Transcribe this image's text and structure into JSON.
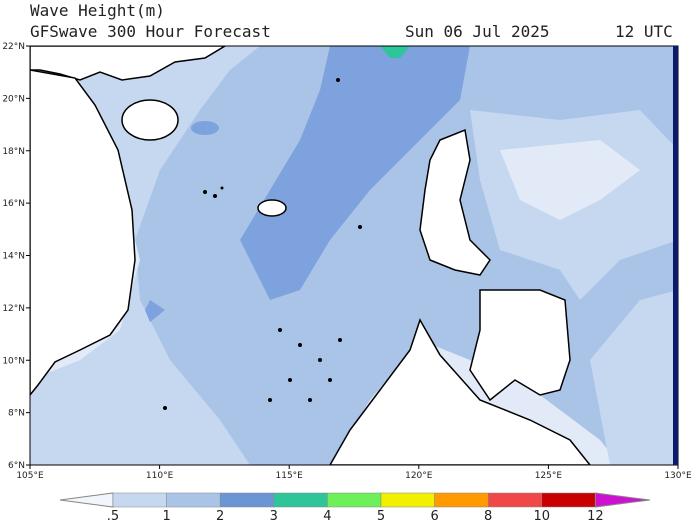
{
  "header": {
    "title": "Wave Height(m)",
    "subtitle": "GFSwave 300 Hour Forecast",
    "date": "Sun 06 Jul 2025",
    "time": "12 UTC"
  },
  "map": {
    "lat_labels": [
      "6°N",
      "8°N",
      "10°N",
      "12°N",
      "14°N",
      "16°N",
      "18°N",
      "20°N",
      "22°N"
    ],
    "lon_labels": [
      "105°E",
      "110°E",
      "115°E",
      "120°E",
      "125°E",
      "130°E"
    ]
  },
  "colorbar": {
    "labels": [
      ".5",
      "1",
      "2",
      "3",
      "4",
      "5",
      "6",
      "8",
      "10",
      "12"
    ]
  }
}
